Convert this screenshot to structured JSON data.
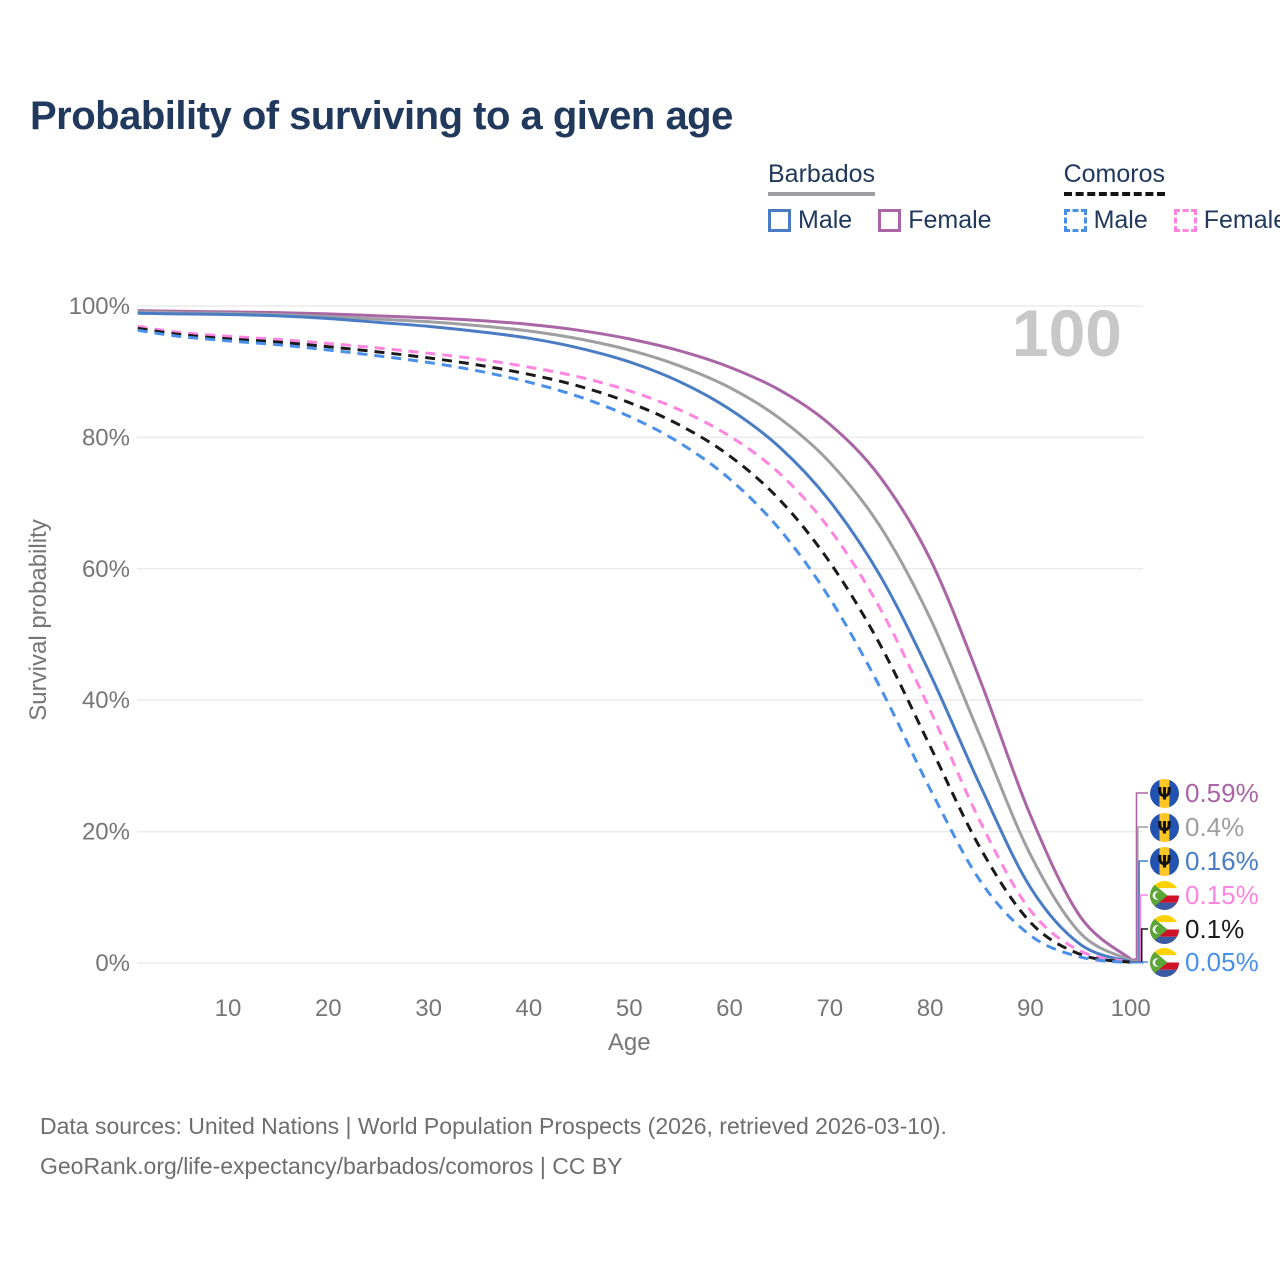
{
  "title": "Probability of surviving to a given age",
  "legend": {
    "groups": [
      {
        "label": "Barbados",
        "line_style": "solid",
        "underline_color": "#9e9ea3",
        "items": [
          {
            "label": "Male",
            "color": "#4a7cc4"
          },
          {
            "label": "Female",
            "color": "#a965a5"
          }
        ]
      },
      {
        "label": "Comoros",
        "line_style": "dashed",
        "underline_color": "#141414",
        "items": [
          {
            "label": "Male",
            "color": "#4a90e8"
          },
          {
            "label": "Female",
            "color": "#ff85e0"
          }
        ]
      }
    ]
  },
  "watermark": "100",
  "chart_data": {
    "type": "line",
    "title": "Probability of surviving to a given age",
    "xlabel": "Age",
    "ylabel": "Survival probability",
    "xlim": [
      1,
      100
    ],
    "ylim": [
      0,
      100
    ],
    "grid": "horizontal-only",
    "x_ticks": [
      10,
      20,
      30,
      40,
      50,
      60,
      70,
      80,
      90,
      100
    ],
    "y_ticks": [
      {
        "value": 100,
        "label": "100%"
      },
      {
        "value": 80,
        "label": "80%"
      },
      {
        "value": 60,
        "label": "60%"
      },
      {
        "value": 40,
        "label": "40%"
      },
      {
        "value": 20,
        "label": "20%"
      },
      {
        "value": 0,
        "label": "0%"
      }
    ],
    "ages": [
      1,
      5,
      10,
      15,
      20,
      25,
      30,
      35,
      40,
      45,
      50,
      55,
      60,
      65,
      70,
      75,
      80,
      85,
      90,
      95,
      100
    ],
    "series": [
      {
        "name": "Barbados Female",
        "country": "Barbados",
        "sex": "Female",
        "color": "#a965a5",
        "dash": "solid",
        "end_label": "0.59%",
        "end_value": 0.59,
        "values": [
          99.3,
          99.2,
          99.1,
          99.0,
          98.8,
          98.5,
          98.2,
          97.8,
          97.2,
          96.3,
          95.0,
          93.2,
          90.7,
          87.2,
          82.0,
          74.0,
          61.5,
          43.0,
          22.5,
          7.0,
          0.59
        ]
      },
      {
        "name": "Barbados Both sexes",
        "country": "Barbados",
        "sex": "Both",
        "color": "#9e9ea3",
        "dash": "solid",
        "end_label": "0.4%",
        "end_value": 0.4,
        "values": [
          99.1,
          99.0,
          98.9,
          98.7,
          98.4,
          98.0,
          97.6,
          97.0,
          96.2,
          95.0,
          93.3,
          90.9,
          87.6,
          82.9,
          76.2,
          66.5,
          52.5,
          34.5,
          16.5,
          4.5,
          0.4
        ]
      },
      {
        "name": "Barbados Male",
        "country": "Barbados",
        "sex": "Male",
        "color": "#4a7cc4",
        "dash": "solid",
        "end_label": "0.16%",
        "end_value": 0.16,
        "values": [
          98.9,
          98.8,
          98.7,
          98.5,
          98.1,
          97.5,
          96.9,
          96.1,
          95.1,
          93.6,
          91.5,
          88.5,
          84.3,
          78.5,
          70.3,
          59.0,
          44.0,
          27.0,
          11.5,
          2.8,
          0.16
        ]
      },
      {
        "name": "Comoros Female",
        "country": "Comoros",
        "sex": "Female",
        "color": "#ff85e0",
        "dash": "dashed",
        "end_label": "0.15%",
        "end_value": 0.15,
        "values": [
          96.9,
          96.0,
          95.4,
          94.9,
          94.3,
          93.6,
          92.8,
          91.9,
          90.7,
          89.2,
          87.1,
          84.2,
          80.2,
          74.5,
          66.0,
          54.0,
          38.5,
          21.5,
          8.0,
          1.8,
          0.15
        ]
      },
      {
        "name": "Comoros Both sexes",
        "country": "Comoros",
        "sex": "Both",
        "color": "#1a1a1a",
        "dash": "dashed",
        "end_label": "0.1%",
        "end_value": 0.1,
        "values": [
          96.6,
          95.7,
          95.0,
          94.5,
          93.8,
          93.0,
          92.1,
          91.0,
          89.6,
          87.8,
          85.3,
          81.9,
          77.2,
          70.5,
          61.0,
          48.5,
          33.0,
          17.5,
          6.2,
          1.3,
          0.1
        ]
      },
      {
        "name": "Comoros Male",
        "country": "Comoros",
        "sex": "Male",
        "color": "#4a90e8",
        "dash": "dashed",
        "end_label": "0.05%",
        "end_value": 0.05,
        "values": [
          96.3,
          95.4,
          94.7,
          94.1,
          93.3,
          92.4,
          91.4,
          90.1,
          88.4,
          86.2,
          83.2,
          79.2,
          73.7,
          66.0,
          55.5,
          42.0,
          26.5,
          12.5,
          4.2,
          0.9,
          0.05
        ]
      }
    ],
    "legend_position": "top-right"
  },
  "footer": {
    "line1": "Data sources: United Nations | World Population Prospects (2026, retrieved 2026-03-10).",
    "line2": "GeoRank.org/life-expectancy/barbados/comoros | CC BY"
  }
}
